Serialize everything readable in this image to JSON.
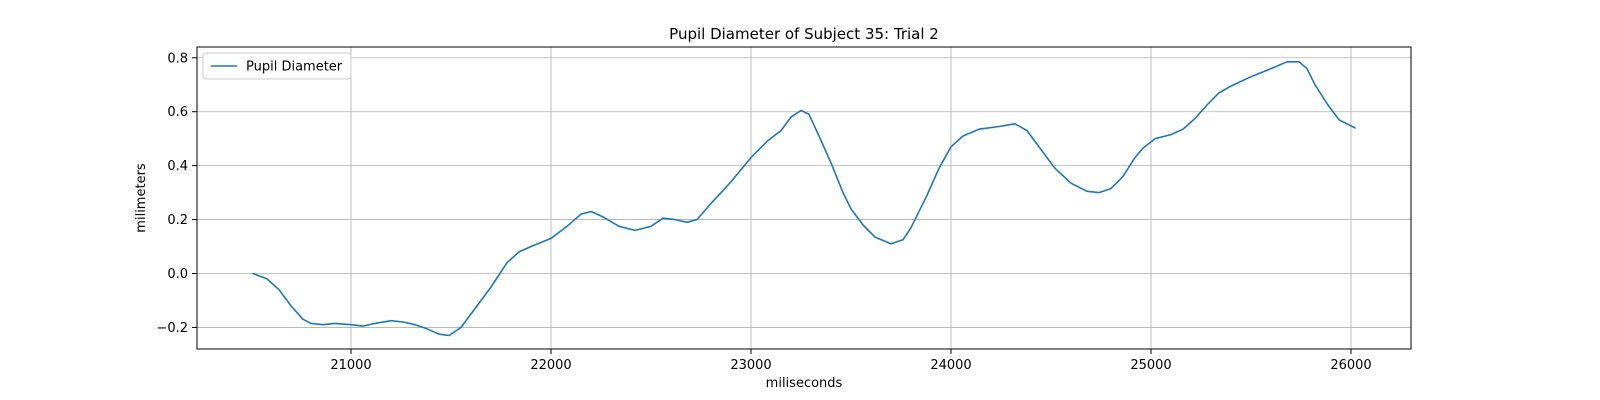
{
  "chart_data": {
    "type": "line",
    "title": "Pupil Diameter of Subject 35: Trial 2",
    "xlabel": "miliseconds",
    "ylabel": "milimeters",
    "xlim": [
      20230,
      26300
    ],
    "ylim": [
      -0.28,
      0.84
    ],
    "xticks": [
      21000,
      22000,
      23000,
      24000,
      25000,
      26000
    ],
    "yticks": [
      -0.2,
      0.0,
      0.2,
      0.4,
      0.6,
      0.8
    ],
    "ytick_labels": [
      "−0.2",
      "0.0",
      "0.2",
      "0.4",
      "0.6",
      "0.8"
    ],
    "grid": true,
    "legend_position": "upper-left",
    "series": [
      {
        "name": "Pupil Diameter",
        "color": "#1f77b4",
        "x": [
          20510,
          20580,
          20640,
          20700,
          20760,
          20800,
          20860,
          20920,
          21000,
          21060,
          21120,
          21200,
          21260,
          21320,
          21380,
          21440,
          21490,
          21550,
          21620,
          21700,
          21780,
          21840,
          21900,
          22000,
          22080,
          22150,
          22200,
          22260,
          22340,
          22420,
          22500,
          22560,
          22620,
          22680,
          22730,
          22800,
          22900,
          23000,
          23080,
          23150,
          23200,
          23250,
          23290,
          23340,
          23400,
          23460,
          23500,
          23560,
          23620,
          23700,
          23760,
          23800,
          23880,
          23940,
          24000,
          24060,
          24140,
          24240,
          24320,
          24380,
          24450,
          24520,
          24600,
          24680,
          24740,
          24800,
          24860,
          24920,
          24960,
          25020,
          25100,
          25160,
          25220,
          25280,
          25340,
          25400,
          25500,
          25600,
          25680,
          25740,
          25780,
          25820,
          25880,
          25940,
          26020
        ],
        "y": [
          0.0,
          -0.02,
          -0.06,
          -0.12,
          -0.17,
          -0.185,
          -0.19,
          -0.185,
          -0.19,
          -0.195,
          -0.185,
          -0.175,
          -0.18,
          -0.19,
          -0.205,
          -0.225,
          -0.23,
          -0.2,
          -0.13,
          -0.05,
          0.04,
          0.08,
          0.1,
          0.13,
          0.175,
          0.22,
          0.23,
          0.21,
          0.175,
          0.16,
          0.175,
          0.205,
          0.2,
          0.19,
          0.2,
          0.26,
          0.34,
          0.43,
          0.49,
          0.53,
          0.58,
          0.605,
          0.59,
          0.51,
          0.41,
          0.3,
          0.24,
          0.18,
          0.135,
          0.11,
          0.125,
          0.17,
          0.29,
          0.39,
          0.47,
          0.51,
          0.535,
          0.545,
          0.555,
          0.53,
          0.46,
          0.39,
          0.335,
          0.305,
          0.3,
          0.315,
          0.36,
          0.43,
          0.465,
          0.5,
          0.515,
          0.535,
          0.575,
          0.625,
          0.67,
          0.695,
          0.73,
          0.76,
          0.785,
          0.785,
          0.76,
          0.7,
          0.63,
          0.57,
          0.54
        ]
      }
    ]
  }
}
